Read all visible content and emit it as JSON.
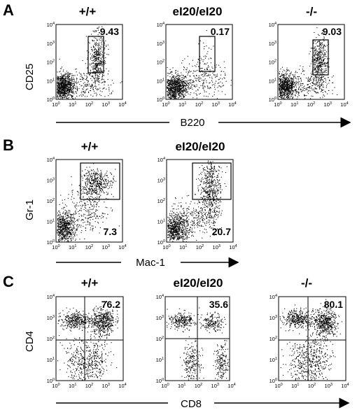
{
  "figure": {
    "panels": [
      {
        "letter": "A",
        "y_axis": "CD25",
        "x_axis": "B220",
        "plots": [
          {
            "genotype": "+/+",
            "gate_value": "9.43"
          },
          {
            "genotype": "eI20/eI20",
            "gate_value": "0.17"
          },
          {
            "genotype": "-/-",
            "gate_value": "9.03"
          }
        ]
      },
      {
        "letter": "B",
        "y_axis": "Gr-1",
        "x_axis": "Mac-1",
        "plots": [
          {
            "genotype": "+/+",
            "gate_value": "7.3"
          },
          {
            "genotype": "eI20/eI20",
            "gate_value": "20.7"
          }
        ]
      },
      {
        "letter": "C",
        "y_axis": "CD4",
        "x_axis": "CD8",
        "plots": [
          {
            "genotype": "+/+",
            "gate_value": "76.2"
          },
          {
            "genotype": "eI20/eI20",
            "gate_value": "35.6"
          },
          {
            "genotype": "-/-",
            "gate_value": "80.1"
          }
        ]
      }
    ],
    "tick_base": "10",
    "tick_exponents": [
      "0",
      "1",
      "2",
      "3",
      "4"
    ]
  }
}
